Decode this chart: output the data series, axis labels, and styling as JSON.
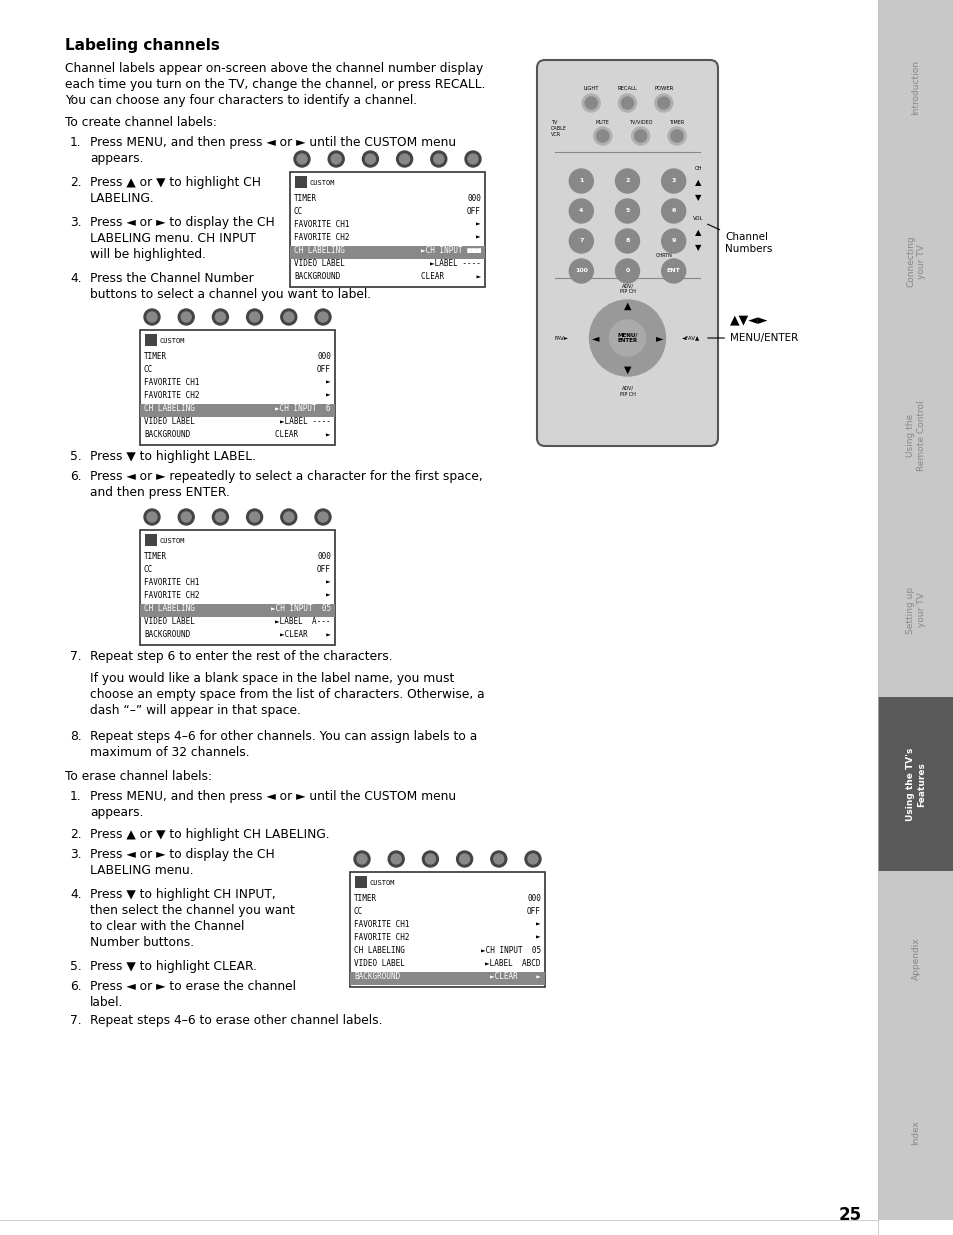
{
  "page_bg": "#ffffff",
  "sidebar_bg": "#c8c8c8",
  "sidebar_active_bg": "#595959",
  "page_number": "25",
  "sidebar_items": [
    {
      "label": "Introduction",
      "active": false
    },
    {
      "label": "Connecting\nyour TV",
      "active": false
    },
    {
      "label": "Using the\nRemote Control",
      "active": false
    },
    {
      "label": "Setting up\nyour TV",
      "active": false
    },
    {
      "label": "Using the TV's\nFeatures",
      "active": true
    },
    {
      "label": "Appendix",
      "active": false
    },
    {
      "label": "Index",
      "active": false
    }
  ]
}
